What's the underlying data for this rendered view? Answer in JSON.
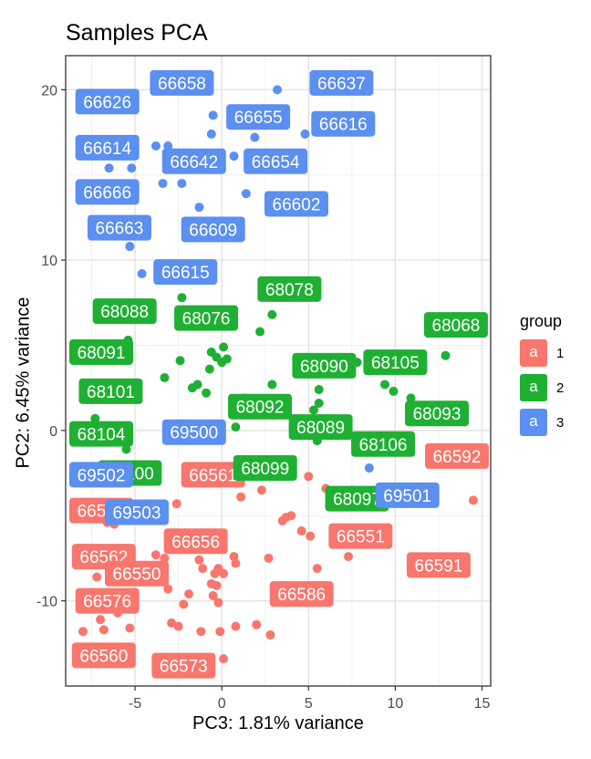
{
  "chart_data": {
    "type": "scatter",
    "title": "Samples PCA",
    "xlabel": "PC3: 1.81% variance",
    "ylabel": "PC2: 6.45% variance",
    "xlim": [
      -9,
      15.5
    ],
    "ylim": [
      -15,
      22
    ],
    "x_ticks": [
      -5,
      0,
      5,
      10,
      15
    ],
    "y_ticks": [
      -10,
      0,
      10,
      20
    ],
    "x_tick_labels": [
      "-5",
      "0",
      "5",
      "10",
      "15"
    ],
    "y_tick_labels": [
      "-10",
      "0",
      "10",
      "20"
    ],
    "grid": true,
    "legend": {
      "title": "group",
      "placement": "right",
      "key_glyph": "a",
      "entries": [
        {
          "label": "1",
          "color": "#F8766D"
        },
        {
          "label": "2",
          "color": "#1FB033"
        },
        {
          "label": "3",
          "color": "#5B8FF0"
        }
      ]
    },
    "colors": {
      "1": "#F8766D",
      "2": "#1FB033",
      "3": "#5B8FF0"
    },
    "series": [
      {
        "name": "1",
        "points": [
          {
            "x": 14.5,
            "y": -4.1
          },
          {
            "x": 9.5,
            "y": -6.6
          },
          {
            "x": 7.3,
            "y": -7.4
          },
          {
            "x": 5.5,
            "y": -8.1
          },
          {
            "x": 3.7,
            "y": -5.1
          },
          {
            "x": 3.5,
            "y": -5.3
          },
          {
            "x": 5.0,
            "y": -2.7
          },
          {
            "x": 2.8,
            "y": -12.0
          },
          {
            "x": 2.0,
            "y": -11.4
          },
          {
            "x": 0.8,
            "y": -11.5
          },
          {
            "x": 0.8,
            "y": -7.8
          },
          {
            "x": 0.7,
            "y": -7.4
          },
          {
            "x": 0.1,
            "y": -8.4
          },
          {
            "x": -0.2,
            "y": -8.1
          },
          {
            "x": -0.4,
            "y": -8.4
          },
          {
            "x": -0.3,
            "y": -9.1
          },
          {
            "x": -0.6,
            "y": -9.0
          },
          {
            "x": -0.5,
            "y": -9.7
          },
          {
            "x": -0.2,
            "y": -10.1
          },
          {
            "x": -0.1,
            "y": -11.8
          },
          {
            "x": -1.2,
            "y": -11.8
          },
          {
            "x": -1.1,
            "y": -8.1
          },
          {
            "x": -1.3,
            "y": -7.6
          },
          {
            "x": -1.9,
            "y": -9.6
          },
          {
            "x": -2.2,
            "y": -10.2
          },
          {
            "x": -2.5,
            "y": -11.5
          },
          {
            "x": -2.9,
            "y": -11.3
          },
          {
            "x": -3.1,
            "y": -9.3
          },
          {
            "x": -3.3,
            "y": -7.5
          },
          {
            "x": -3.8,
            "y": -7.3
          },
          {
            "x": -3.9,
            "y": -8.2
          },
          {
            "x": -4.2,
            "y": -8.6
          },
          {
            "x": -4.8,
            "y": -8.8
          },
          {
            "x": -5.3,
            "y": -11.6
          },
          {
            "x": -6.0,
            "y": -10.7
          },
          {
            "x": -6.8,
            "y": -11.7
          },
          {
            "x": -7.0,
            "y": -11.1
          },
          {
            "x": -8.0,
            "y": -11.8
          },
          {
            "x": -7.2,
            "y": -8.6
          },
          {
            "x": -6.6,
            "y": -5.4
          },
          {
            "x": -6.2,
            "y": -5.5
          },
          {
            "x": 0.1,
            "y": -13.4
          },
          {
            "x": 2.3,
            "y": -3.5
          },
          {
            "x": 1.1,
            "y": -3.9
          },
          {
            "x": 2.7,
            "y": -7.5
          },
          {
            "x": 4.6,
            "y": -5.9
          },
          {
            "x": 5.1,
            "y": -6.2
          },
          {
            "x": 4.0,
            "y": -5.0
          },
          {
            "x": 6.0,
            "y": -3.4
          },
          {
            "x": -2.6,
            "y": -4.3
          }
        ],
        "labels": [
          {
            "text": "66592",
            "x": 13.9,
            "y": -1.5
          },
          {
            "text": "66591",
            "x": 12.5,
            "y": -7.9
          },
          {
            "text": "66551",
            "x": 8.0,
            "y": -6.2
          },
          {
            "text": "66586",
            "x": 4.6,
            "y": -9.6
          },
          {
            "text": "66656",
            "x": -1.5,
            "y": -6.5
          },
          {
            "text": "66573",
            "x": -2.2,
            "y": -13.8
          },
          {
            "text": "66560",
            "x": -6.8,
            "y": -13.2
          },
          {
            "text": "66576",
            "x": -6.6,
            "y": -10.0
          },
          {
            "text": "66562",
            "x": -6.8,
            "y": -7.4
          },
          {
            "text": "66550",
            "x": -4.9,
            "y": -8.4
          },
          {
            "text": "66561",
            "x": -0.5,
            "y": -2.6
          },
          {
            "text": "66569",
            "x": -7.4,
            "y": -4.7
          }
        ]
      },
      {
        "name": "2",
        "points": [
          {
            "x": 12.9,
            "y": 4.4
          },
          {
            "x": 10.9,
            "y": 1.9
          },
          {
            "x": 9.9,
            "y": 2.3
          },
          {
            "x": 9.4,
            "y": 2.7
          },
          {
            "x": 7.8,
            "y": 4.0
          },
          {
            "x": 5.6,
            "y": 2.4
          },
          {
            "x": 5.6,
            "y": 1.6
          },
          {
            "x": 5.3,
            "y": 1.2
          },
          {
            "x": 3.0,
            "y": 0.9
          },
          {
            "x": 2.9,
            "y": 2.7
          },
          {
            "x": 2.9,
            "y": 6.8
          },
          {
            "x": 2.2,
            "y": 5.8
          },
          {
            "x": 1.9,
            "y": 1.3
          },
          {
            "x": 1.3,
            "y": 1.9
          },
          {
            "x": 0.8,
            "y": 0.2
          },
          {
            "x": 0.3,
            "y": 4.2
          },
          {
            "x": 0.0,
            "y": 4.0
          },
          {
            "x": 0.1,
            "y": 4.9
          },
          {
            "x": -0.3,
            "y": 4.3
          },
          {
            "x": -0.6,
            "y": 4.6
          },
          {
            "x": -0.7,
            "y": 3.6
          },
          {
            "x": -0.9,
            "y": 2.2
          },
          {
            "x": -1.4,
            "y": 2.7
          },
          {
            "x": -1.7,
            "y": 2.5
          },
          {
            "x": -2.4,
            "y": 4.1
          },
          {
            "x": -2.3,
            "y": 7.8
          },
          {
            "x": -3.3,
            "y": 3.1
          },
          {
            "x": -5.4,
            "y": 5.3
          },
          {
            "x": -5.5,
            "y": -1.1
          },
          {
            "x": -7.3,
            "y": 0.7
          },
          {
            "x": 7.5,
            "y": -3.5
          },
          {
            "x": 5.5,
            "y": -0.6
          }
        ],
        "labels": [
          {
            "text": "68068",
            "x": 13.5,
            "y": 6.2
          },
          {
            "text": "68105",
            "x": 10.0,
            "y": 4.0
          },
          {
            "text": "68093",
            "x": 12.4,
            "y": 1.0
          },
          {
            "text": "68090",
            "x": 5.9,
            "y": 3.8
          },
          {
            "text": "68078",
            "x": 3.9,
            "y": 8.3
          },
          {
            "text": "68076",
            "x": -0.9,
            "y": 6.6
          },
          {
            "text": "68088",
            "x": -5.6,
            "y": 7.0
          },
          {
            "text": "68091",
            "x": -8.2,
            "y": 4.6
          },
          {
            "text": "68101",
            "x": -6.4,
            "y": 2.3
          },
          {
            "text": "68092",
            "x": 2.2,
            "y": 1.4
          },
          {
            "text": "68089",
            "x": 5.7,
            "y": 0.2
          },
          {
            "text": "68106",
            "x": 9.3,
            "y": -0.8
          },
          {
            "text": "68099",
            "x": 2.5,
            "y": -2.2
          },
          {
            "text": "68097",
            "x": 7.8,
            "y": -4.0
          },
          {
            "text": "68104",
            "x": -9.0,
            "y": -0.2
          },
          {
            "text": "68100",
            "x": -5.3,
            "y": -2.5
          }
        ]
      },
      {
        "name": "3",
        "points": [
          {
            "x": 3.2,
            "y": 20.0
          },
          {
            "x": -0.5,
            "y": 18.5
          },
          {
            "x": -0.6,
            "y": 17.4
          },
          {
            "x": 1.9,
            "y": 17.2
          },
          {
            "x": 4.8,
            "y": 17.4
          },
          {
            "x": 0.7,
            "y": 16.1
          },
          {
            "x": -1.5,
            "y": 15.9
          },
          {
            "x": -3.1,
            "y": 16.7
          },
          {
            "x": -3.8,
            "y": 16.7
          },
          {
            "x": -5.2,
            "y": 15.4
          },
          {
            "x": -6.5,
            "y": 15.4
          },
          {
            "x": -3.4,
            "y": 14.5
          },
          {
            "x": -2.3,
            "y": 14.5
          },
          {
            "x": -1.3,
            "y": 13.1
          },
          {
            "x": 1.4,
            "y": 13.9
          },
          {
            "x": -5.3,
            "y": 10.8
          },
          {
            "x": -4.6,
            "y": 9.2
          },
          {
            "x": 8.5,
            "y": -2.2
          },
          {
            "x": -0.4,
            "y": 0.1
          }
        ],
        "labels": [
          {
            "text": "66658",
            "x": -2.3,
            "y": 20.4
          },
          {
            "text": "66637",
            "x": 6.9,
            "y": 20.4
          },
          {
            "text": "66626",
            "x": -6.6,
            "y": 19.3
          },
          {
            "text": "66655",
            "x": 2.1,
            "y": 18.4
          },
          {
            "text": "66616",
            "x": 7.0,
            "y": 18.0
          },
          {
            "text": "66614",
            "x": -6.6,
            "y": 16.6
          },
          {
            "text": "66642",
            "x": -1.6,
            "y": 15.8
          },
          {
            "text": "66654",
            "x": 3.1,
            "y": 15.8
          },
          {
            "text": "66666",
            "x": -6.6,
            "y": 14.0
          },
          {
            "text": "66602",
            "x": 4.3,
            "y": 13.3
          },
          {
            "text": "66663",
            "x": -5.9,
            "y": 11.9
          },
          {
            "text": "66609",
            "x": -0.5,
            "y": 11.8
          },
          {
            "text": "66615",
            "x": -2.1,
            "y": 9.3
          },
          {
            "text": "69500",
            "x": -1.6,
            "y": -0.1
          },
          {
            "text": "69502",
            "x": -8.2,
            "y": -2.6
          },
          {
            "text": "69503",
            "x": -4.9,
            "y": -4.8
          },
          {
            "text": "69501",
            "x": 10.7,
            "y": -3.8
          }
        ]
      }
    ]
  }
}
